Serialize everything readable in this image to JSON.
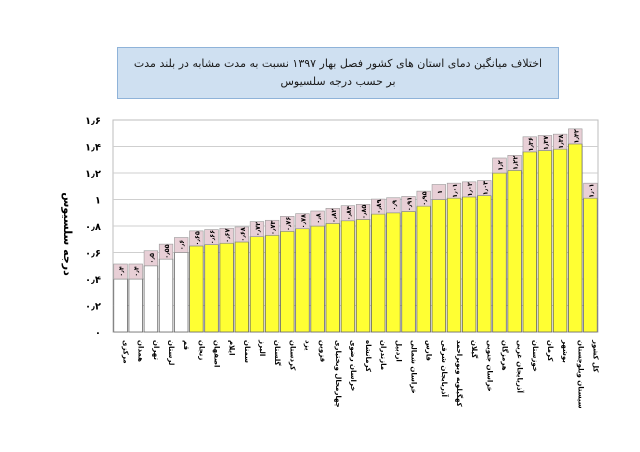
{
  "chart_data": {
    "type": "bar",
    "title_line1": "اختلاف میانگین دمای استان های کشور فصل بهار ۱۳۹۷ نسبت به مدت مشابه در بلند مدت",
    "title_line2": "بر حسب درجه سلسیوس",
    "ylabel": "درجه سلسیوس",
    "xlabel": "",
    "ylim": [
      0,
      1.6
    ],
    "yticks": [
      "۰",
      "۰٫۲",
      "۰٫۴",
      "۰٫۶",
      "۰٫۸",
      "۱",
      "۱٫۲",
      "۱٫۴",
      "۱٫۶"
    ],
    "grid": true,
    "categories": [
      "مرکزی",
      "همدان",
      "تهران",
      "لرستان",
      "قم",
      "زنجان",
      "اصفهان",
      "ایلام",
      "سمنان",
      "البرز",
      "گلستان",
      "کردستان",
      "یزد",
      "قزوین",
      "چهارمحال وبختیاری",
      "خراسان رضوی",
      "کرمانشاه",
      "مازندران",
      "اردبیل",
      "خراسان شمالی",
      "فارس",
      "آذربایجان شرقی",
      "کهگیلویه وبویراحمد",
      "گیلان",
      "خراسان جنوبی",
      "هرمزگان",
      "آذربایجان غربی",
      "خوزستان",
      "کرمان",
      "بوشهر",
      "سیستان وبلوچستان",
      "کل کشور"
    ],
    "values": [
      0.4,
      0.4,
      0.5,
      0.55,
      0.6,
      0.65,
      0.66,
      0.67,
      0.68,
      0.72,
      0.73,
      0.76,
      0.78,
      0.8,
      0.82,
      0.84,
      0.85,
      0.89,
      0.9,
      0.91,
      0.95,
      1.0,
      1.01,
      1.02,
      1.03,
      1.2,
      1.22,
      1.36,
      1.37,
      1.38,
      1.42,
      1.01
    ],
    "data_labels": [
      "۰٫۴",
      "۰٫۴",
      "۰٫۵",
      "۰٫۵۵",
      "۰٫۶",
      "۰٫۶۵",
      "۰٫۶۶",
      "۰٫۶۷",
      "۰٫۶۸",
      "۰٫۷۲",
      "۰٫۷۳",
      "۰٫۷۶",
      "۰٫۷۸",
      "۰٫۸",
      "۰٫۸۲",
      "۰٫۸۴",
      "۰٫۸۵",
      "۰٫۸۹",
      "۰٫۹",
      "۰٫۹۱",
      "۰٫۹۵",
      "۱",
      "۱٫۰۱",
      "۱٫۰۲",
      "۱٫۰۳",
      "۱٫۲",
      "۱٫۲۲",
      "۱٫۳۶",
      "۱٫۳۷",
      "۱٫۳۸",
      "۱٫۴۲",
      "۱٫۰۱"
    ],
    "bar_colors": [
      "#ffffff",
      "#ffffff",
      "#ffffff",
      "#ffffff",
      "#ffffff",
      "#ffff33",
      "#ffff33",
      "#ffff33",
      "#ffff33",
      "#ffff33",
      "#ffff33",
      "#ffff33",
      "#ffff33",
      "#ffff33",
      "#ffff33",
      "#ffff33",
      "#ffff33",
      "#ffff33",
      "#ffff33",
      "#ffff33",
      "#ffff33",
      "#ffff33",
      "#ffff33",
      "#ffff33",
      "#ffff33",
      "#ffff33",
      "#ffff33",
      "#ffff33",
      "#ffff33",
      "#ffff33",
      "#ffff33",
      "#ffff33"
    ],
    "label_box_color": "#e8cfd6"
  }
}
